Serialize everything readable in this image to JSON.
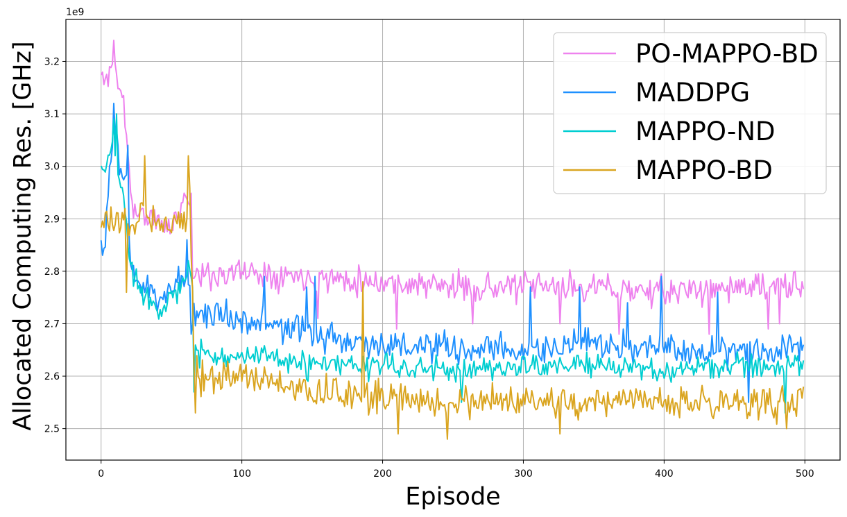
{
  "chart_data": {
    "type": "line",
    "title": "",
    "xlabel": "Episode",
    "ylabel": "Allocated Computing Res. [GHz]",
    "y_exponent_label": "1e9",
    "xlim": [
      -25,
      525
    ],
    "ylim": [
      2.44,
      3.28
    ],
    "x_ticks": [
      0,
      100,
      200,
      300,
      400,
      500
    ],
    "x_tick_labels": [
      "0",
      "100",
      "200",
      "300",
      "400",
      "500"
    ],
    "y_ticks": [
      2.5,
      2.6,
      2.7,
      2.8,
      2.9,
      3.0,
      3.1,
      3.2
    ],
    "y_tick_labels": [
      "2.5",
      "2.6",
      "2.7",
      "2.8",
      "2.9",
      "3.0",
      "3.1",
      "3.2"
    ],
    "grid": true,
    "legend_position": "upper-right",
    "x": {
      "start": 0,
      "end": 499,
      "step": 1
    },
    "series": [
      {
        "name": "PO-MAPPO-BD",
        "color": "#ee82ee",
        "key": [
          [
            0,
            3.17
          ],
          [
            3,
            3.16
          ],
          [
            8,
            3.2
          ],
          [
            12,
            3.16
          ],
          [
            16,
            3.12
          ],
          [
            20,
            3.0
          ],
          [
            22,
            2.92
          ],
          [
            35,
            2.9
          ],
          [
            50,
            2.88
          ],
          [
            60,
            2.95
          ],
          [
            64,
            2.93
          ],
          [
            65,
            2.8
          ],
          [
            70,
            2.79
          ],
          [
            100,
            2.8
          ],
          [
            150,
            2.79
          ],
          [
            200,
            2.78
          ],
          [
            250,
            2.77
          ],
          [
            300,
            2.77
          ],
          [
            350,
            2.77
          ],
          [
            400,
            2.76
          ],
          [
            450,
            2.77
          ],
          [
            499,
            2.77
          ]
        ],
        "noise": 0.025,
        "seed": 11,
        "overrides": [
          [
            9,
            3.24
          ],
          [
            6,
            3.19
          ],
          [
            18,
            3.06
          ],
          [
            154,
            2.71
          ],
          [
            210,
            2.69
          ],
          [
            264,
            2.7
          ],
          [
            326,
            2.7
          ],
          [
            368,
            2.68
          ],
          [
            432,
            2.68
          ],
          [
            474,
            2.69
          ],
          [
            482,
            2.7
          ],
          [
            498,
            2.78
          ]
        ]
      },
      {
        "name": "MADDPG",
        "color": "#1e90ff",
        "key": [
          [
            0,
            2.88
          ],
          [
            2,
            2.82
          ],
          [
            5,
            2.95
          ],
          [
            9,
            3.08
          ],
          [
            14,
            2.97
          ],
          [
            19,
            2.98
          ],
          [
            20,
            2.85
          ],
          [
            25,
            2.78
          ],
          [
            40,
            2.75
          ],
          [
            55,
            2.78
          ],
          [
            64,
            2.78
          ],
          [
            65,
            2.72
          ],
          [
            80,
            2.72
          ],
          [
            100,
            2.71
          ],
          [
            150,
            2.68
          ],
          [
            200,
            2.66
          ],
          [
            250,
            2.65
          ],
          [
            300,
            2.65
          ],
          [
            350,
            2.66
          ],
          [
            400,
            2.65
          ],
          [
            450,
            2.65
          ],
          [
            499,
            2.66
          ]
        ],
        "noise": 0.028,
        "seed": 23,
        "overrides": [
          [
            9,
            3.12
          ],
          [
            19,
            3.04
          ],
          [
            61,
            2.86
          ],
          [
            64,
            2.68
          ],
          [
            116,
            2.79
          ],
          [
            146,
            2.77
          ],
          [
            152,
            2.79
          ],
          [
            305,
            2.77
          ],
          [
            340,
            2.77
          ],
          [
            374,
            2.74
          ],
          [
            398,
            2.79
          ],
          [
            438,
            2.76
          ],
          [
            460,
            2.55
          ],
          [
            499,
            2.66
          ]
        ]
      },
      {
        "name": "MAPPO-ND",
        "color": "#00ced1",
        "key": [
          [
            0,
            3.0
          ],
          [
            3,
            2.98
          ],
          [
            8,
            3.05
          ],
          [
            12,
            2.98
          ],
          [
            16,
            2.95
          ],
          [
            20,
            2.82
          ],
          [
            25,
            2.78
          ],
          [
            40,
            2.73
          ],
          [
            55,
            2.76
          ],
          [
            64,
            2.8
          ],
          [
            67,
            2.65
          ],
          [
            75,
            2.64
          ],
          [
            100,
            2.64
          ],
          [
            150,
            2.62
          ],
          [
            200,
            2.62
          ],
          [
            250,
            2.61
          ],
          [
            300,
            2.62
          ],
          [
            350,
            2.62
          ],
          [
            400,
            2.61
          ],
          [
            450,
            2.62
          ],
          [
            499,
            2.62
          ]
        ],
        "noise": 0.022,
        "seed": 37,
        "overrides": [
          [
            9,
            3.09
          ],
          [
            11,
            3.1
          ],
          [
            62,
            2.82
          ],
          [
            66,
            2.57
          ],
          [
            256,
            2.55
          ],
          [
            486,
            2.53
          ],
          [
            499,
            2.63
          ]
        ]
      },
      {
        "name": "MAPPO-BD",
        "color": "#daa520",
        "key": [
          [
            0,
            2.9
          ],
          [
            3,
            2.88
          ],
          [
            10,
            2.9
          ],
          [
            20,
            2.88
          ],
          [
            30,
            2.92
          ],
          [
            40,
            2.9
          ],
          [
            50,
            2.89
          ],
          [
            60,
            2.9
          ],
          [
            63,
            2.94
          ],
          [
            66,
            2.65
          ],
          [
            70,
            2.6
          ],
          [
            100,
            2.6
          ],
          [
            150,
            2.57
          ],
          [
            200,
            2.56
          ],
          [
            250,
            2.55
          ],
          [
            300,
            2.55
          ],
          [
            350,
            2.55
          ],
          [
            400,
            2.55
          ],
          [
            450,
            2.55
          ],
          [
            499,
            2.55
          ]
        ],
        "noise": 0.028,
        "seed": 53,
        "overrides": [
          [
            31,
            3.02
          ],
          [
            62,
            3.02
          ],
          [
            67,
            2.53
          ],
          [
            18,
            2.76
          ],
          [
            186,
            2.78
          ],
          [
            211,
            2.49
          ],
          [
            246,
            2.48
          ],
          [
            326,
            2.49
          ],
          [
            487,
            2.5
          ],
          [
            499,
            2.58
          ]
        ]
      }
    ]
  }
}
